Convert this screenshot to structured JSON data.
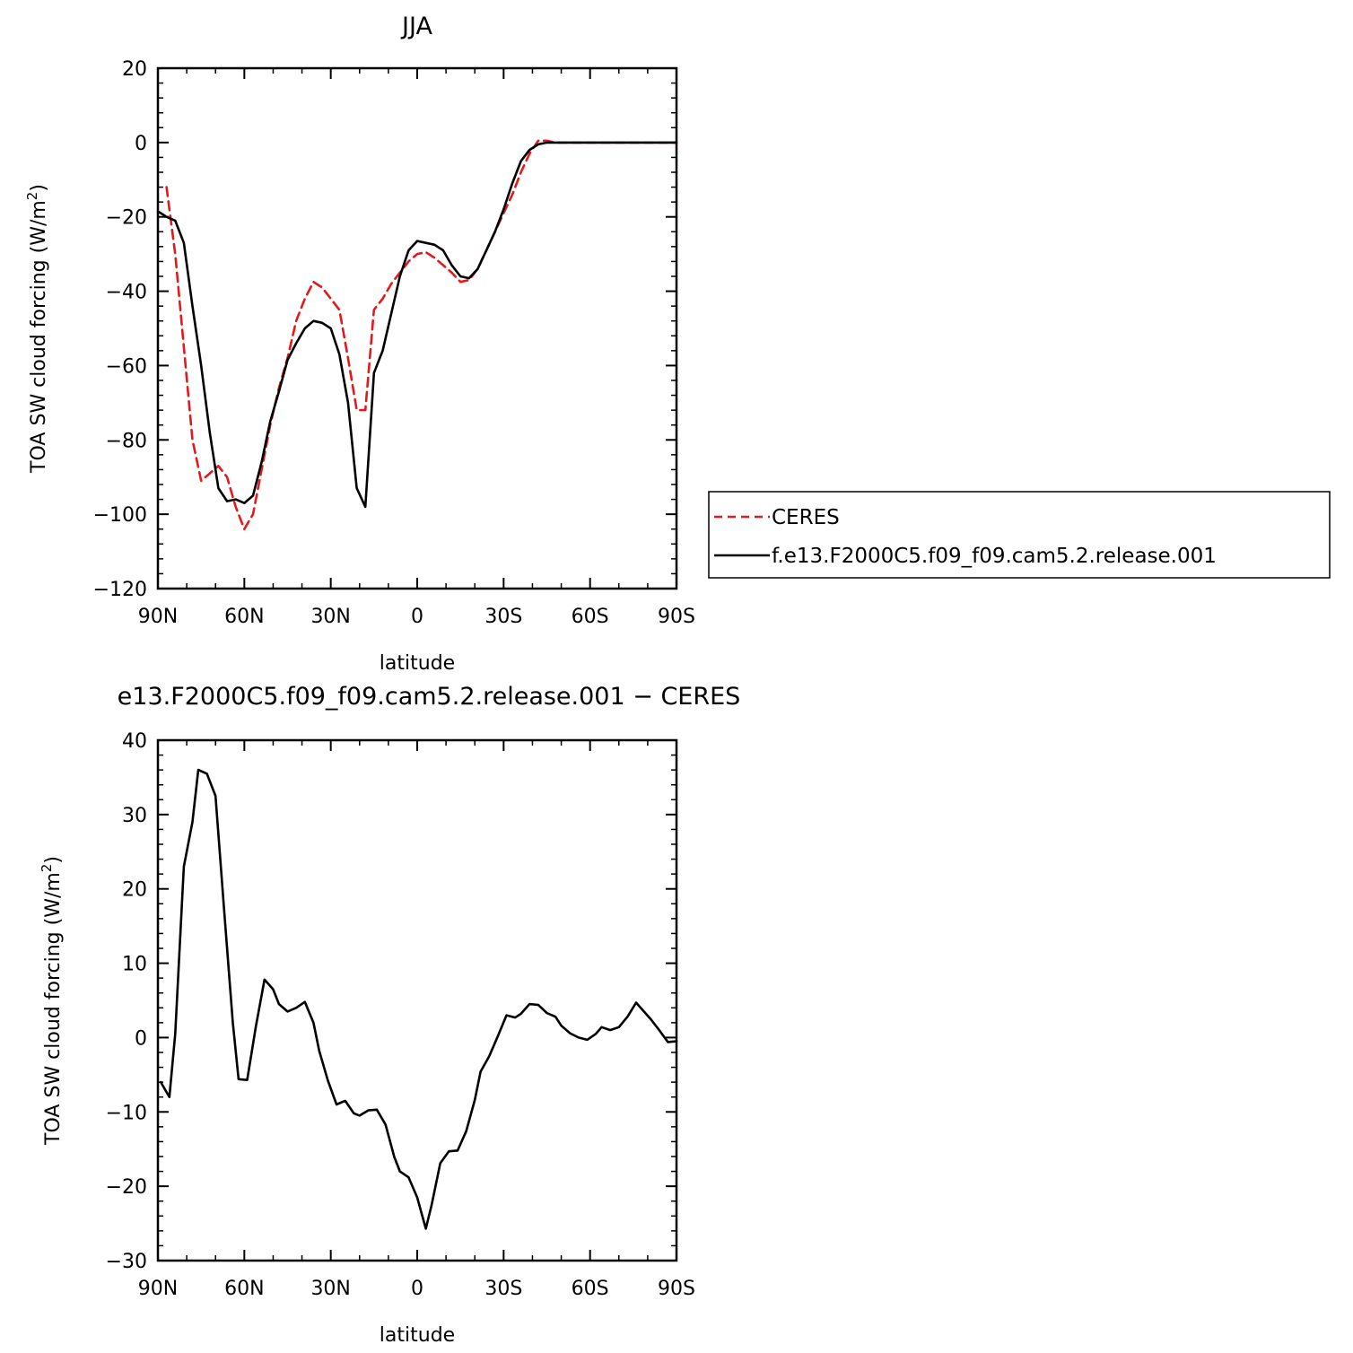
{
  "chart_data": [
    {
      "type": "line",
      "title": "JJA",
      "xlabel": "latitude",
      "ylabel": "TOA SW cloud forcing (W/m",
      "ylabel_superscript": "2",
      "ylabel_close": ")",
      "xlim": [
        90,
        -90
      ],
      "ylim": [
        -120,
        20
      ],
      "x_ticks": [
        90,
        60,
        30,
        0,
        -30,
        -60,
        -90
      ],
      "x_tick_labels": [
        "90N",
        "60N",
        "30N",
        "0",
        "30S",
        "60S",
        "90S"
      ],
      "y_ticks": [
        20,
        0,
        -20,
        -40,
        -60,
        -80,
        -100,
        -120
      ],
      "y_tick_labels": [
        "20",
        "0",
        "−20",
        "−40",
        "−60",
        "−80",
        "−100",
        "−120"
      ],
      "grid": false,
      "legend_position": "right",
      "series": [
        {
          "name": "CERES",
          "color": "#e31a1c",
          "dash": "dashed",
          "x": [
            87,
            84,
            81,
            78,
            75,
            72,
            69,
            66,
            63,
            60,
            57,
            54,
            51,
            48,
            45,
            42,
            39,
            36,
            33,
            30,
            27,
            24,
            21,
            18,
            15,
            12,
            9,
            6,
            3,
            0,
            -3,
            -6,
            -9,
            -12,
            -15,
            -18,
            -21,
            -24,
            -27,
            -30,
            -33,
            -36,
            -39,
            -42,
            -45,
            -48,
            -51,
            -54,
            -57,
            -60,
            -63,
            -66,
            -69,
            -72,
            -75,
            -78,
            -81,
            -84,
            -87,
            -90
          ],
          "y": [
            -12,
            -30,
            -55,
            -80,
            -91,
            -89,
            -87,
            -90,
            -98,
            -104,
            -100,
            -88,
            -76,
            -66,
            -58,
            -48,
            -42,
            -37.5,
            -39,
            -42,
            -45,
            -58,
            -72,
            -72,
            -45,
            -42,
            -38,
            -35,
            -32,
            -30,
            -29.5,
            -31,
            -33,
            -35,
            -37.5,
            -37,
            -34,
            -29,
            -24,
            -19,
            -14,
            -8,
            -3,
            0.5,
            0.5,
            0,
            0,
            0,
            0,
            0,
            0,
            0,
            0,
            0,
            0,
            0,
            0,
            0,
            0,
            0
          ]
        },
        {
          "name": "f.e13.F2000C5.f09_f09.cam5.2.release.001",
          "color": "#000000",
          "dash": "solid",
          "x": [
            90,
            87,
            84,
            81,
            78,
            75,
            72,
            69,
            66,
            63,
            60,
            57,
            54,
            51,
            48,
            45,
            42,
            39,
            36,
            33,
            30,
            27,
            24,
            21,
            18,
            15,
            12,
            9,
            6,
            3,
            0,
            -3,
            -6,
            -9,
            -12,
            -15,
            -18,
            -21,
            -24,
            -27,
            -30,
            -33,
            -36,
            -39,
            -42,
            -45,
            -48,
            -51,
            -54,
            -57,
            -60,
            -63,
            -66,
            -69,
            -72,
            -75,
            -78,
            -81,
            -84,
            -87,
            -90
          ],
          "y": [
            -18.5,
            -20,
            -21,
            -27,
            -44,
            -60,
            -78,
            -93,
            -96.5,
            -96,
            -97,
            -95,
            -86,
            -75,
            -67,
            -58.5,
            -54,
            -50,
            -48,
            -48.5,
            -50,
            -57,
            -70,
            -93,
            -98,
            -62,
            -56,
            -46,
            -36,
            -29,
            -26.5,
            -27,
            -27.5,
            -29,
            -33,
            -36,
            -36.5,
            -34,
            -29,
            -24,
            -18,
            -11,
            -5,
            -2,
            -0.5,
            0,
            0,
            0,
            0,
            0,
            0,
            0,
            0,
            0,
            0,
            0,
            0,
            0,
            0,
            0,
            0
          ]
        }
      ]
    },
    {
      "type": "line",
      "title": "e13.F2000C5.f09_f09.cam5.2.release.001 − CERES",
      "xlabel": "latitude",
      "ylabel": "TOA SW cloud forcing (W/m",
      "ylabel_superscript": "2",
      "ylabel_close": ")",
      "xlim": [
        90,
        -90
      ],
      "ylim": [
        -30,
        40
      ],
      "x_ticks": [
        90,
        60,
        30,
        0,
        -30,
        -60,
        -90
      ],
      "x_tick_labels": [
        "90N",
        "60N",
        "30N",
        "0",
        "30S",
        "60S",
        "90S"
      ],
      "y_ticks": [
        40,
        30,
        20,
        10,
        0,
        -10,
        -20,
        -30
      ],
      "y_tick_labels": [
        "40",
        "30",
        "20",
        "10",
        "0",
        "−10",
        "−20",
        "−30"
      ],
      "grid": false,
      "series": [
        {
          "color": "#000000",
          "dash": "solid",
          "x": [
            89,
            86,
            84,
            81,
            78,
            76,
            73,
            70,
            67,
            64,
            62,
            59,
            56,
            53,
            50,
            48,
            45,
            42,
            39,
            36,
            34,
            31,
            28,
            25,
            22,
            20,
            17,
            14,
            11,
            8,
            6,
            3,
            0,
            -3,
            -5,
            -8,
            -11,
            -14,
            -17,
            -20,
            -22,
            -25,
            -28,
            -31,
            -34,
            -36,
            -39,
            -42,
            -45,
            -48,
            -50,
            -53,
            -56,
            -59,
            -62,
            -64,
            -67,
            -70,
            -73,
            -76,
            -78,
            -81,
            -84,
            -87,
            -90
          ],
          "y": [
            -6,
            -8,
            0.5,
            23,
            29,
            36,
            35.5,
            32.5,
            17,
            2,
            -5.6,
            -5.7,
            1.5,
            7.8,
            6.5,
            4.5,
            3.5,
            4,
            4.8,
            2,
            -1.8,
            -5.8,
            -9,
            -8.5,
            -10.2,
            -10.5,
            -9.8,
            -9.7,
            -11.7,
            -16,
            -18,
            -18.8,
            -21.5,
            -25.7,
            -22.5,
            -16.9,
            -15.3,
            -15.2,
            -12.6,
            -8.4,
            -4.6,
            -2.5,
            0.2,
            3,
            2.7,
            3.2,
            4.5,
            4.4,
            3.3,
            2.8,
            1.6,
            0.6,
            0,
            -0.3,
            0.5,
            1.4,
            1,
            1.4,
            2.8,
            4.7,
            3.8,
            2.5,
            1,
            -0.6,
            -0.5
          ]
        }
      ]
    }
  ]
}
